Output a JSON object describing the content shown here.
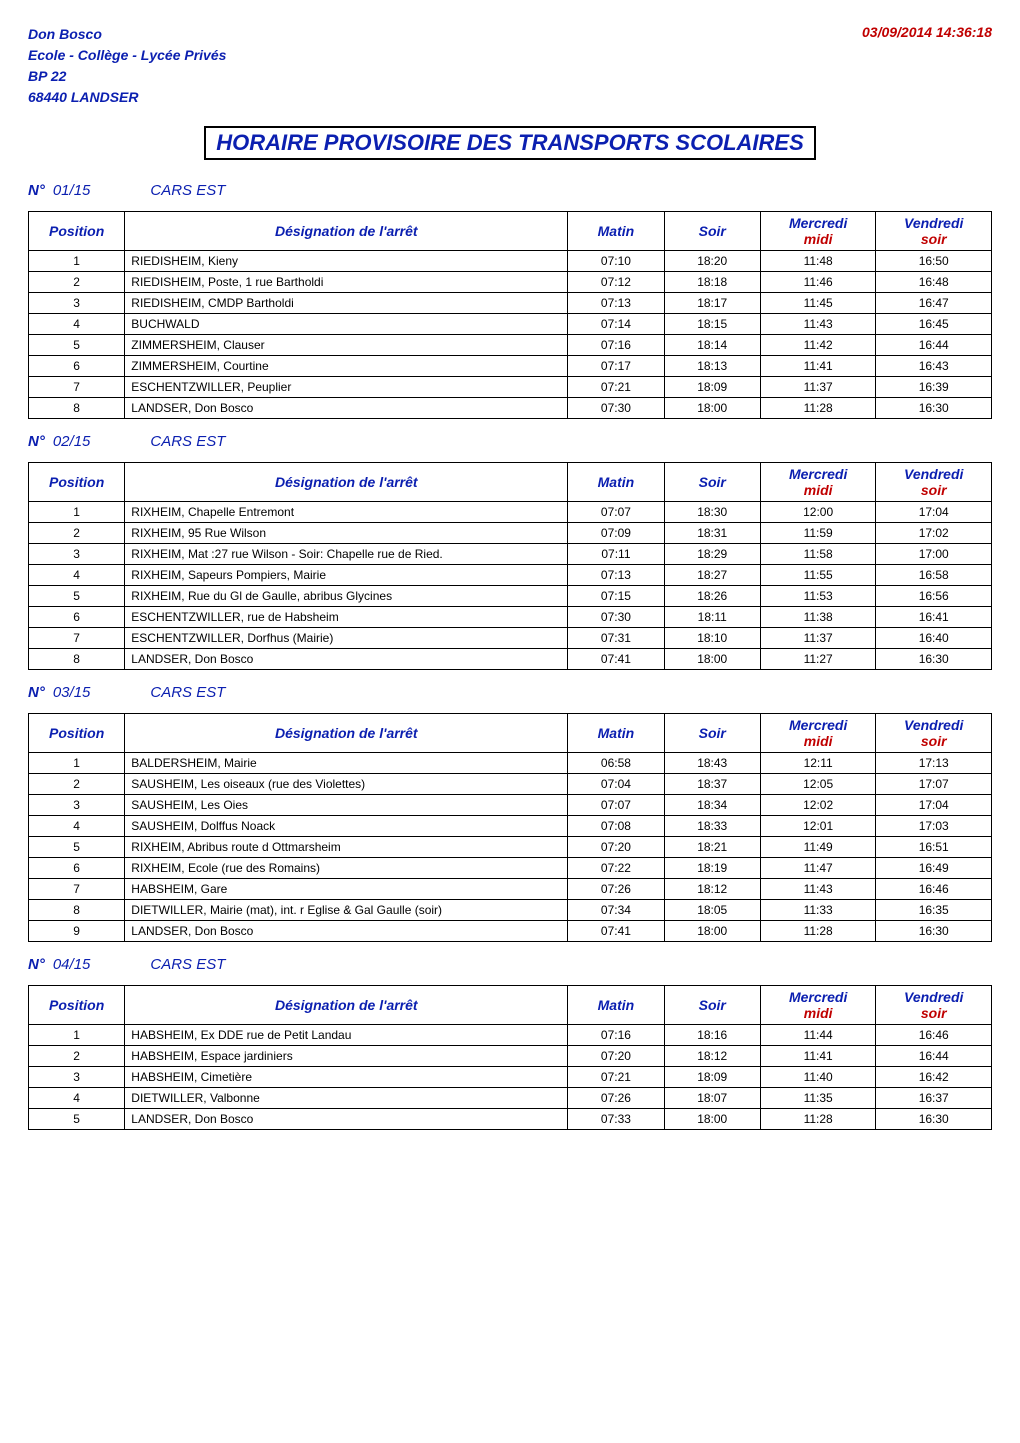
{
  "header": {
    "org_line1": "Don Bosco",
    "org_line2": "Ecole - Collège - Lycée Privés",
    "org_line3": "BP 22",
    "org_line4": "68440 LANDSER",
    "datetime": "03/09/2014 14:36:18"
  },
  "title": "HORAIRE PROVISOIRE DES TRANSPORTS SCOLAIRES",
  "columns": {
    "position": "Position",
    "designation": "Désignation de l'arrêt",
    "matin": "Matin",
    "soir": "Soir",
    "mercredi": "Mercredi",
    "mercredi_sub": "midi",
    "vendredi": "Vendredi",
    "vendredi_sub": "soir"
  },
  "route_prefix": "N°",
  "routes": [
    {
      "num": "01/15",
      "carrier": "CARS EST",
      "stops": [
        {
          "p": "1",
          "d": "RIEDISHEIM, Kieny",
          "m": "07:10",
          "s": "18:20",
          "me": "11:48",
          "v": "16:50"
        },
        {
          "p": "2",
          "d": "RIEDISHEIM, Poste, 1 rue Bartholdi",
          "m": "07:12",
          "s": "18:18",
          "me": "11:46",
          "v": "16:48"
        },
        {
          "p": "3",
          "d": "RIEDISHEIM, CMDP Bartholdi",
          "m": "07:13",
          "s": "18:17",
          "me": "11:45",
          "v": "16:47"
        },
        {
          "p": "4",
          "d": "BUCHWALD",
          "m": "07:14",
          "s": "18:15",
          "me": "11:43",
          "v": "16:45"
        },
        {
          "p": "5",
          "d": "ZIMMERSHEIM, Clauser",
          "m": "07:16",
          "s": "18:14",
          "me": "11:42",
          "v": "16:44"
        },
        {
          "p": "6",
          "d": "ZIMMERSHEIM, Courtine",
          "m": "07:17",
          "s": "18:13",
          "me": "11:41",
          "v": "16:43"
        },
        {
          "p": "7",
          "d": "ESCHENTZWILLER, Peuplier",
          "m": "07:21",
          "s": "18:09",
          "me": "11:37",
          "v": "16:39"
        },
        {
          "p": "8",
          "d": "LANDSER, Don Bosco",
          "m": "07:30",
          "s": "18:00",
          "me": "11:28",
          "v": "16:30"
        }
      ]
    },
    {
      "num": "02/15",
      "carrier": "CARS EST",
      "stops": [
        {
          "p": "1",
          "d": "RIXHEIM, Chapelle Entremont",
          "m": "07:07",
          "s": "18:30",
          "me": "12:00",
          "v": "17:04"
        },
        {
          "p": "2",
          "d": "RIXHEIM, 95 Rue Wilson",
          "m": "07:09",
          "s": "18:31",
          "me": "11:59",
          "v": "17:02"
        },
        {
          "p": "3",
          "d": "RIXHEIM, Mat :27 rue Wilson - Soir: Chapelle rue de Ried.",
          "m": "07:11",
          "s": "18:29",
          "me": "11:58",
          "v": "17:00"
        },
        {
          "p": "4",
          "d": "RIXHEIM, Sapeurs Pompiers, Mairie",
          "m": "07:13",
          "s": "18:27",
          "me": "11:55",
          "v": "16:58"
        },
        {
          "p": "5",
          "d": "RIXHEIM, Rue du Gl de Gaulle, abribus Glycines",
          "m": "07:15",
          "s": "18:26",
          "me": "11:53",
          "v": "16:56"
        },
        {
          "p": "6",
          "d": "ESCHENTZWILLER, rue de Habsheim",
          "m": "07:30",
          "s": "18:11",
          "me": "11:38",
          "v": "16:41"
        },
        {
          "p": "7",
          "d": "ESCHENTZWILLER, Dorfhus (Mairie)",
          "m": "07:31",
          "s": "18:10",
          "me": "11:37",
          "v": "16:40"
        },
        {
          "p": "8",
          "d": "LANDSER, Don Bosco",
          "m": "07:41",
          "s": "18:00",
          "me": "11:27",
          "v": "16:30"
        }
      ]
    },
    {
      "num": "03/15",
      "carrier": "CARS EST",
      "stops": [
        {
          "p": "1",
          "d": "BALDERSHEIM, Mairie",
          "m": "06:58",
          "s": "18:43",
          "me": "12:11",
          "v": "17:13"
        },
        {
          "p": "2",
          "d": "SAUSHEIM, Les oiseaux (rue des Violettes)",
          "m": "07:04",
          "s": "18:37",
          "me": "12:05",
          "v": "17:07"
        },
        {
          "p": "3",
          "d": "SAUSHEIM, Les Oies",
          "m": "07:07",
          "s": "18:34",
          "me": "12:02",
          "v": "17:04"
        },
        {
          "p": "4",
          "d": "SAUSHEIM, Dolffus Noack",
          "m": "07:08",
          "s": "18:33",
          "me": "12:01",
          "v": "17:03"
        },
        {
          "p": "5",
          "d": "RIXHEIM, Abribus route d Ottmarsheim",
          "m": "07:20",
          "s": "18:21",
          "me": "11:49",
          "v": "16:51"
        },
        {
          "p": "6",
          "d": "RIXHEIM, Ecole (rue des Romains)",
          "m": "07:22",
          "s": "18:19",
          "me": "11:47",
          "v": "16:49"
        },
        {
          "p": "7",
          "d": "HABSHEIM, Gare",
          "m": "07:26",
          "s": "18:12",
          "me": "11:43",
          "v": "16:46"
        },
        {
          "p": "8",
          "d": "DIETWILLER, Mairie (mat), int. r Eglise & Gal  Gaulle (soir)",
          "m": "07:34",
          "s": "18:05",
          "me": "11:33",
          "v": "16:35"
        },
        {
          "p": "9",
          "d": "LANDSER, Don Bosco",
          "m": "07:41",
          "s": "18:00",
          "me": "11:28",
          "v": "16:30"
        }
      ]
    },
    {
      "num": "04/15",
      "carrier": "CARS EST",
      "stops": [
        {
          "p": "1",
          "d": "HABSHEIM, Ex DDE rue de Petit Landau",
          "m": "07:16",
          "s": "18:16",
          "me": "11:44",
          "v": "16:46"
        },
        {
          "p": "2",
          "d": "HABSHEIM, Espace jardiniers",
          "m": "07:20",
          "s": "18:12",
          "me": "11:41",
          "v": "16:44"
        },
        {
          "p": "3",
          "d": "HABSHEIM, Cimetière",
          "m": "07:21",
          "s": "18:09",
          "me": "11:40",
          "v": "16:42"
        },
        {
          "p": "4",
          "d": "DIETWILLER, Valbonne",
          "m": "07:26",
          "s": "18:07",
          "me": "11:35",
          "v": "16:37"
        },
        {
          "p": "5",
          "d": "LANDSER, Don Bosco",
          "m": "07:33",
          "s": "18:00",
          "me": "11:28",
          "v": "16:30"
        }
      ]
    }
  ]
}
